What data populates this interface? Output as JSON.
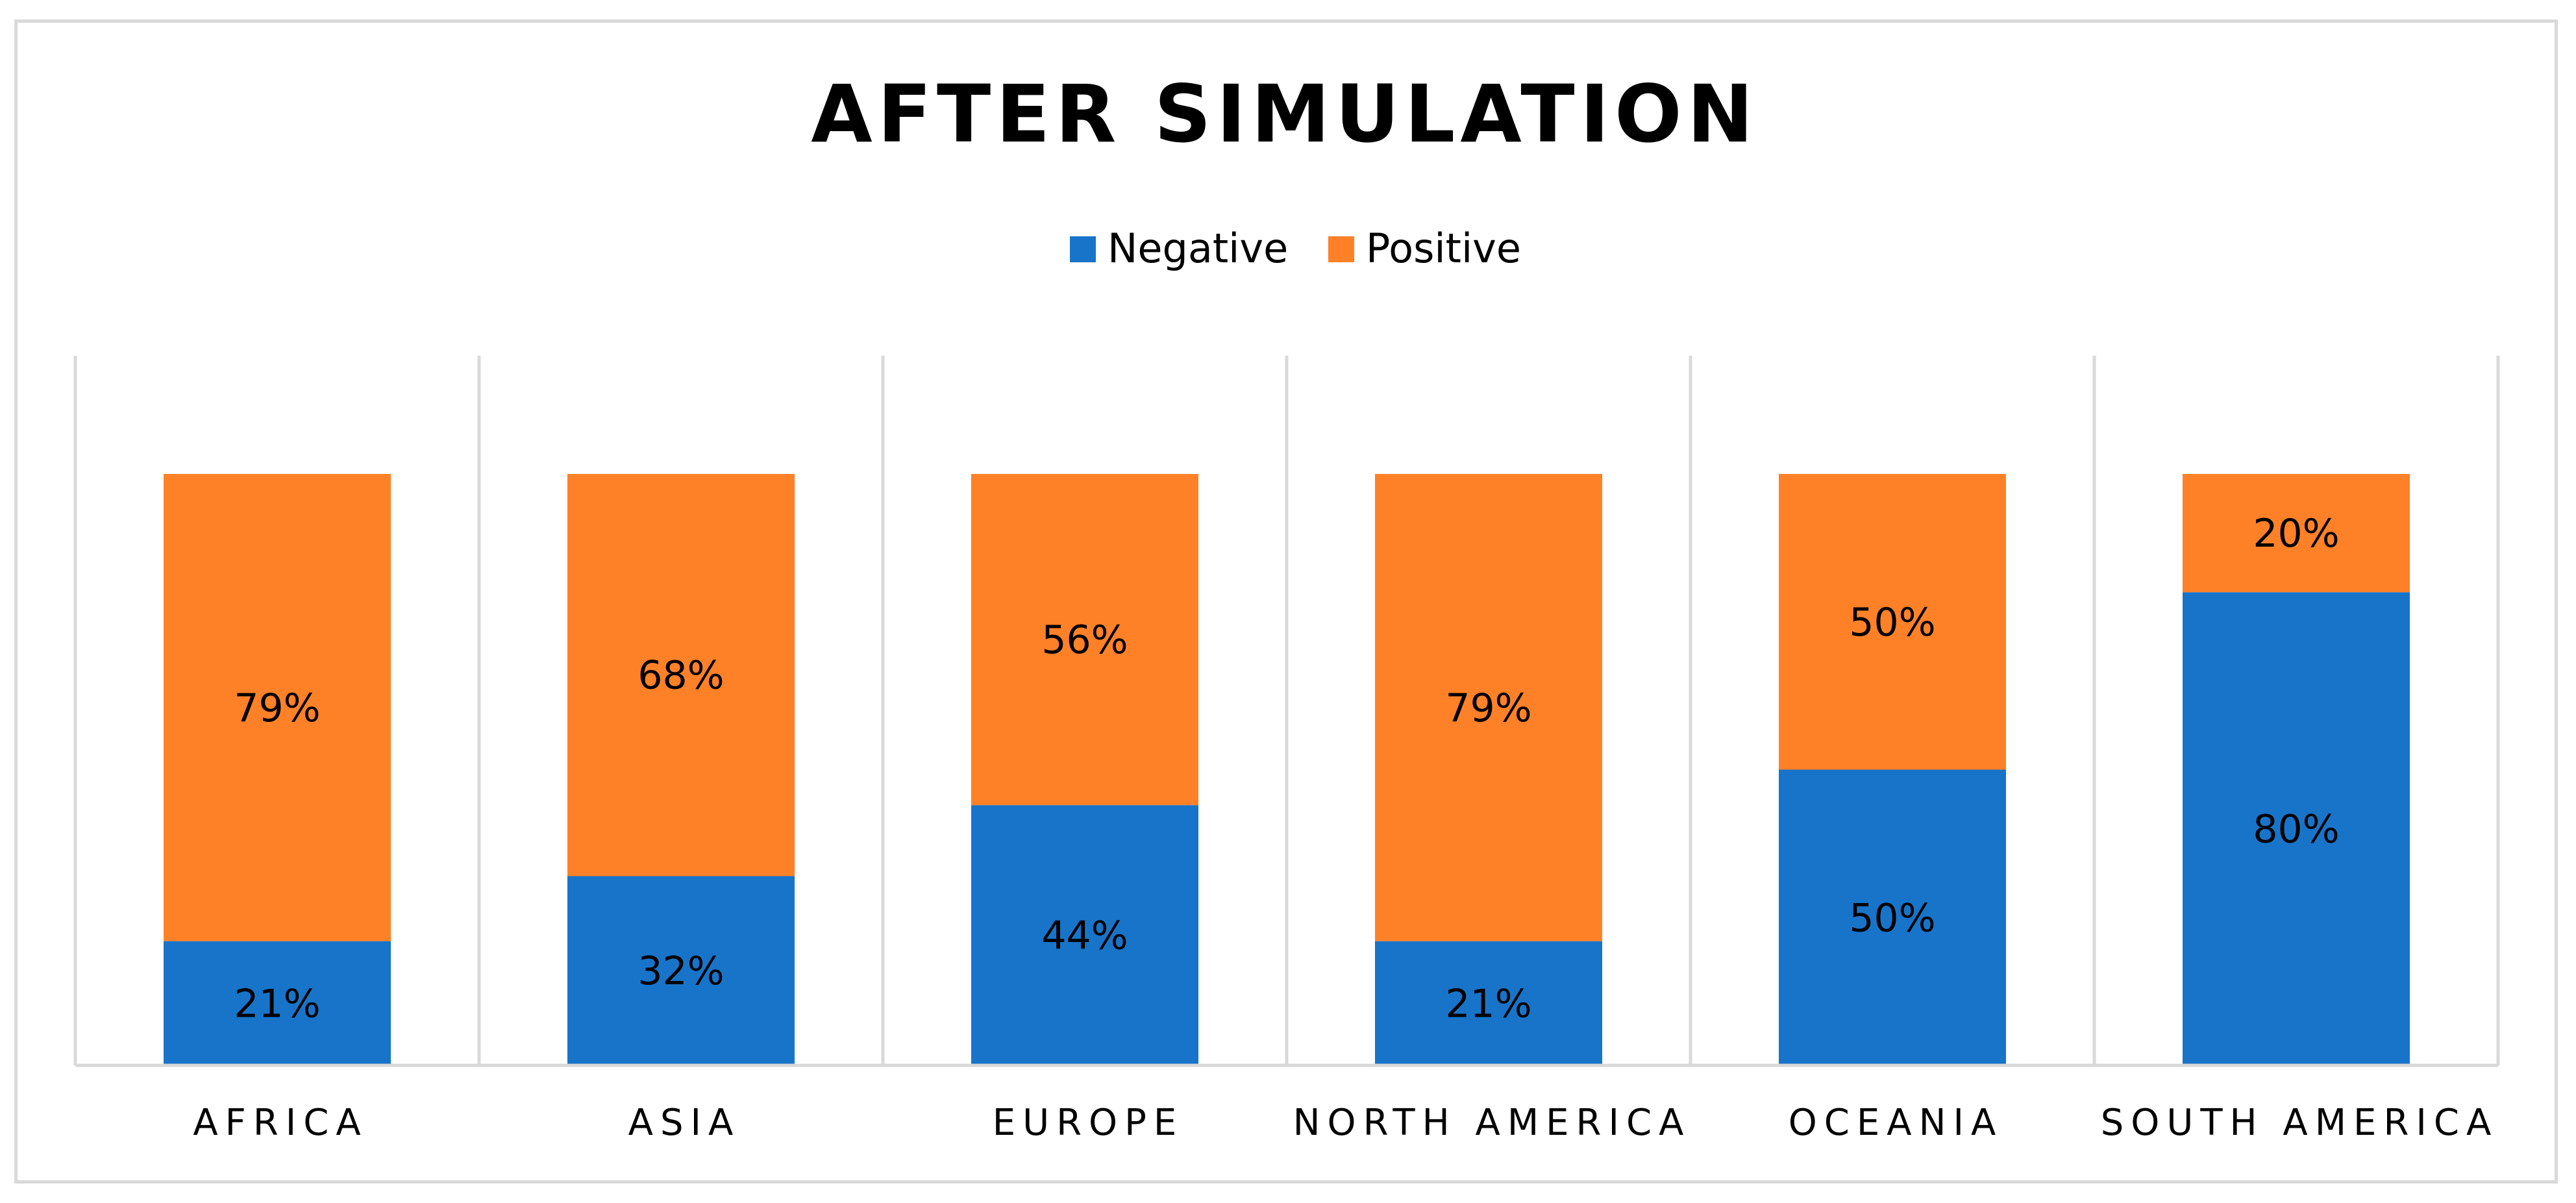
{
  "chart_data": {
    "type": "bar",
    "stacked": true,
    "normalized": true,
    "title": "AFTER SIMULATION",
    "xlabel": "",
    "ylabel": "",
    "ylim": [
      0,
      100
    ],
    "grid": "vertical category separators",
    "legend_position": "top",
    "categories": [
      "AFRICA",
      "ASIA",
      "EUROPE",
      "NORTH AMERICA",
      "OCEANIA",
      "SOUTH AMERICA"
    ],
    "series": [
      {
        "name": "Negative",
        "color": "#1874C9",
        "values": [
          21,
          32,
          44,
          21,
          50,
          80
        ],
        "labels": [
          "21%",
          "32%",
          "44%",
          "21%",
          "50%",
          "80%"
        ]
      },
      {
        "name": "Positive",
        "color": "#FE8128",
        "values": [
          79,
          68,
          56,
          79,
          50,
          20
        ],
        "labels": [
          "79%",
          "68%",
          "56%",
          "79%",
          "50%",
          "20%"
        ]
      }
    ]
  }
}
